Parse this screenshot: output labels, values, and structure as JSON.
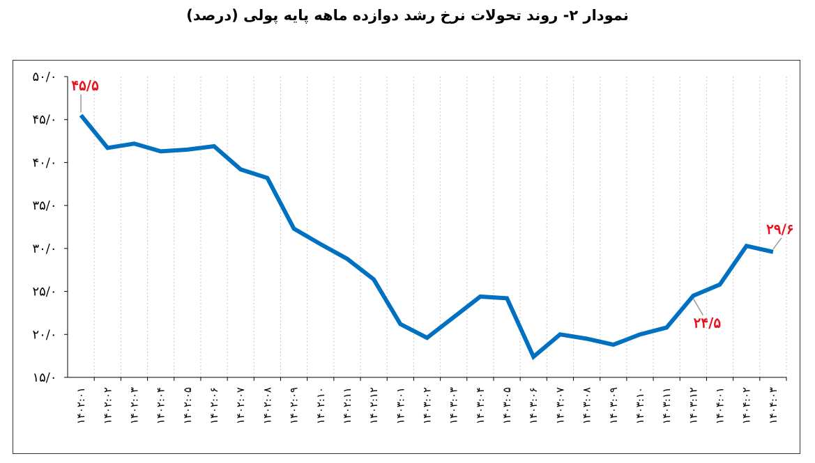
{
  "chart_data": {
    "type": "line",
    "title": "نمودار ۲- روند تحولات نرخ رشد دوازده ماهه پایه پولی (درصد)",
    "ylim": [
      15,
      50
    ],
    "y_ticks": [
      "۵۰/۰",
      "۴۵/۰",
      "۴۰/۰",
      "۳۵/۰",
      "۳۰/۰",
      "۲۵/۰",
      "۲۰/۰",
      "۱۵/۰"
    ],
    "y_tick_values": [
      50,
      45,
      40,
      35,
      30,
      25,
      20,
      15
    ],
    "categories": [
      "۱۴۰۲:۰۱",
      "۱۴۰۲:۰۲",
      "۱۴۰۲:۰۳",
      "۱۴۰۲:۰۴",
      "۱۴۰۲:۰۵",
      "۱۴۰۲:۰۶",
      "۱۴۰۲:۰۷",
      "۱۴۰۲:۰۸",
      "۱۴۰۲:۰۹",
      "۱۴۰۲:۱۰",
      "۱۴۰۲:۱۱",
      "۱۴۰۲:۱۲",
      "۱۴۰۳:۰۱",
      "۱۴۰۳:۰۲",
      "۱۴۰۳:۰۳",
      "۱۴۰۳:۰۴",
      "۱۴۰۳:۰۵",
      "۱۴۰۳:۰۶",
      "۱۴۰۳:۰۷",
      "۱۴۰۳:۰۸",
      "۱۴۰۳:۰۹",
      "۱۴۰۳:۱۰",
      "۱۴۰۳:۱۱",
      "۱۴۰۳:۱۲",
      "۱۴۰۴:۰۱",
      "۱۴۰۴:۰۲",
      "۱۴۰۴:۰۳"
    ],
    "series": [
      {
        "values": [
          45.5,
          41.7,
          42.2,
          41.3,
          41.5,
          41.9,
          39.2,
          38.2,
          32.3,
          30.5,
          28.8,
          26.4,
          21.2,
          19.6,
          22.0,
          24.4,
          24.2,
          17.4,
          20.0,
          19.5,
          18.8,
          20.0,
          20.8,
          24.5,
          25.8,
          30.3,
          29.6
        ],
        "color": "#0070c0"
      }
    ],
    "data_labels": [
      {
        "index": 0,
        "text": "۴۵/۵"
      },
      {
        "index": 23,
        "text": "۲۴/۵"
      },
      {
        "index": 26,
        "text": "۲۹/۶"
      }
    ],
    "label_color": "#e8101c",
    "grid": "vertical-dotted",
    "legend": "none"
  }
}
